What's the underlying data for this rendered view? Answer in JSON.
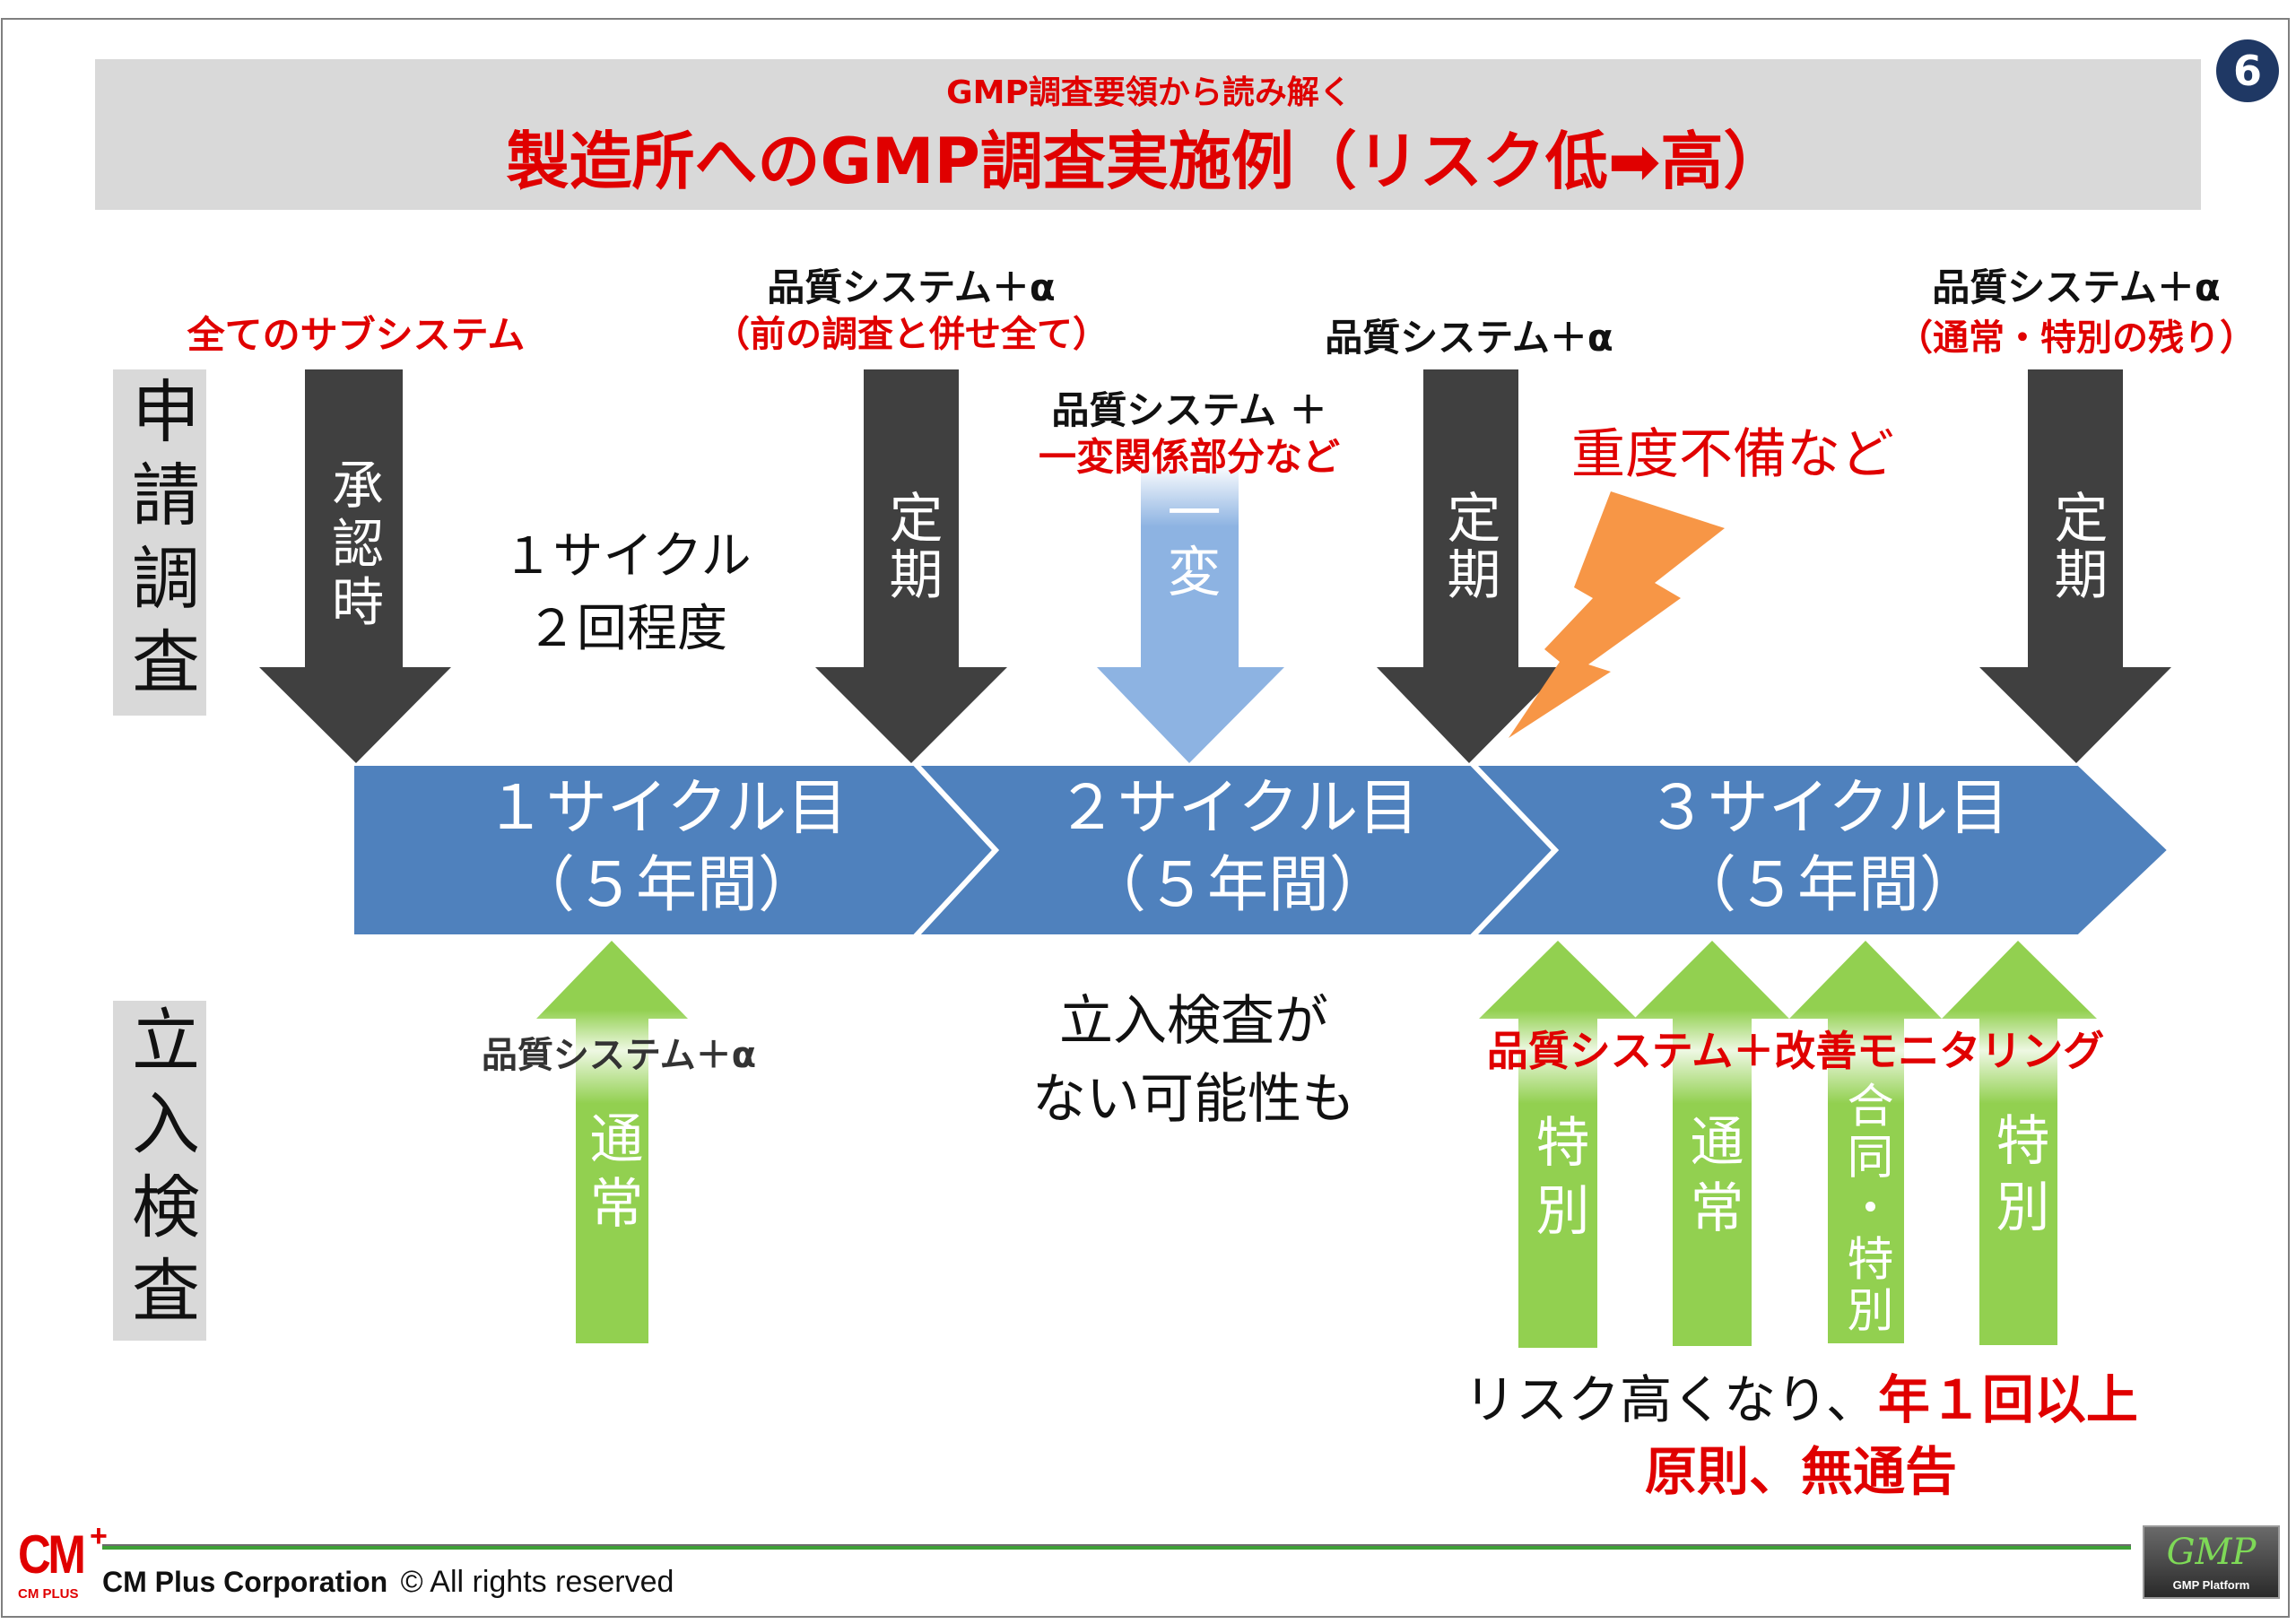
{
  "slide": {
    "page_number": "6",
    "subtitle": "GMP調査要領から読み解く",
    "title": "製造所へのGMP調査実施例（リスク低➡高）"
  },
  "row_labels": {
    "application": "申請調査",
    "onsite": "立入検査"
  },
  "application_inspections": {
    "approval": {
      "label": "承認時",
      "scope": "全てのサブシステム"
    },
    "periodic_1": {
      "label": "定期",
      "scope": "品質システム＋α",
      "scope_note": "（前の調査と併せ全て）"
    },
    "partial_change": {
      "label": "一変",
      "scope": "品質システム ＋",
      "scope_note": "一変関係部分など"
    },
    "periodic_2": {
      "label": "定期",
      "scope": "品質システム＋α"
    },
    "periodic_3": {
      "label": "定期",
      "scope": "品質システム＋α",
      "scope_note": "（通常・特別の残り）"
    }
  },
  "cycle_note": {
    "line1": "１サイクル",
    "line2": "２回程度"
  },
  "serious_deficiency": "重度不備など",
  "cycles": [
    {
      "name": "１サイクル目",
      "period": "（５年間）"
    },
    {
      "name": "２サイクル目",
      "period": "（５年間）"
    },
    {
      "name": "３サイクル目",
      "period": "（５年間）"
    }
  ],
  "onsite_inspections": {
    "cycle1_scope": "品質システム＋α",
    "cycle1": [
      {
        "label": "通常"
      }
    ],
    "cycle2_note": [
      "立入検査が",
      "ない可能性も"
    ],
    "cycle3_scope": "品質システム＋改善モニタリング",
    "cycle3": [
      {
        "label": "特別"
      },
      {
        "label": "通常"
      },
      {
        "label": "合同・特別"
      },
      {
        "label": "特別"
      }
    ]
  },
  "risk_note": {
    "line1_black": "リスク高くなり、",
    "line1_red": "年１回以上",
    "line2": "原則、無通告"
  },
  "footer": {
    "company": "CM Plus Corporation",
    "rights": "© All rights reserved",
    "cm_logo": {
      "mark": "CM",
      "plus": "+",
      "wordmark": "CM PLUS"
    },
    "gmp_logo": {
      "mark": "GMP",
      "wordmark": "GMP Platform"
    }
  },
  "colors": {
    "accent_red": "#e00000",
    "arrow_dark": "#404040",
    "arrow_light_blue": "#8db3e2",
    "chevron_blue": "#4f81bd",
    "arrow_green": "#92d050",
    "bolt_orange": "#f79646",
    "title_bg": "#d9d9d9",
    "page_badge": "#1f3864"
  }
}
